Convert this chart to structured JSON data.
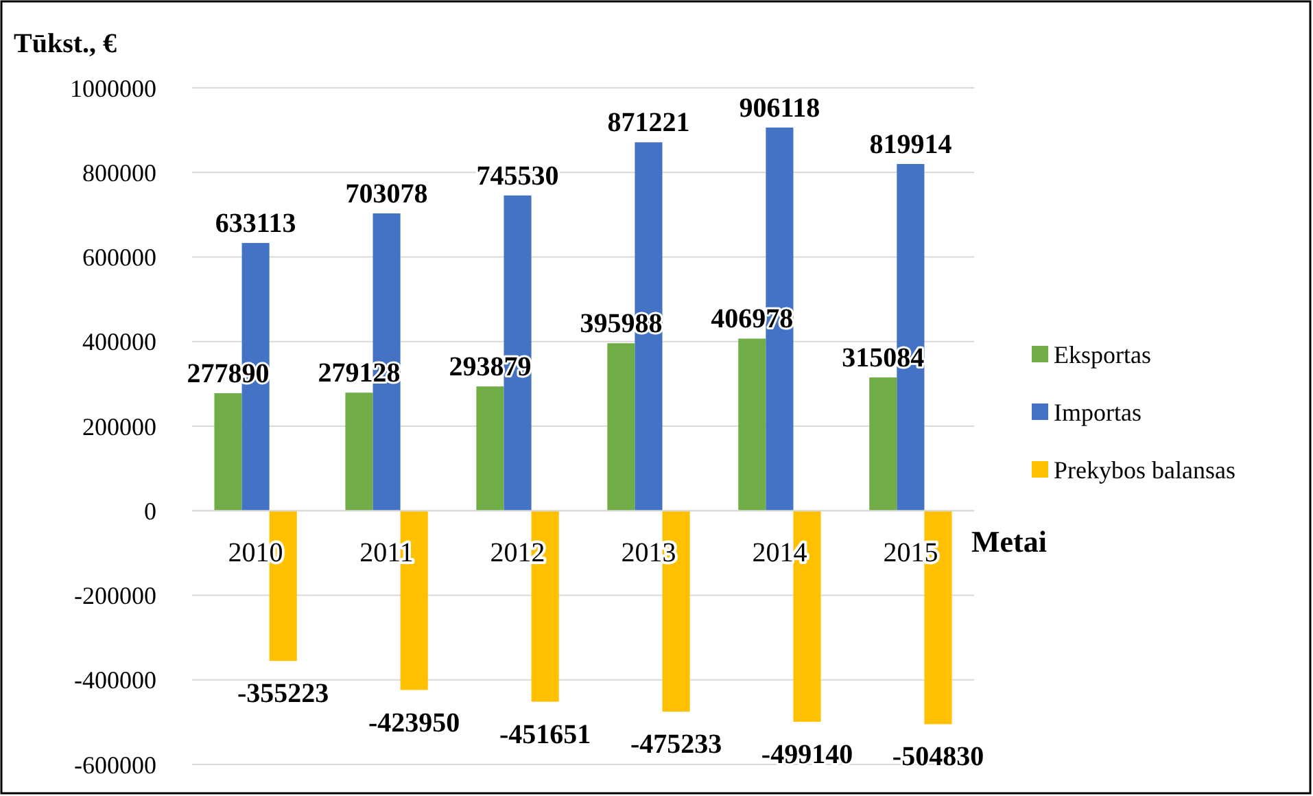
{
  "chart_data": {
    "type": "bar",
    "ylabel": "Tūkst., €",
    "xlabel": "Metai",
    "categories": [
      "2010",
      "2011",
      "2012",
      "2013",
      "2014",
      "2015"
    ],
    "series": [
      {
        "name": "Eksportas",
        "color": "#70ad47",
        "values": [
          277890,
          279128,
          293879,
          395988,
          406978,
          315084
        ]
      },
      {
        "name": "Importas",
        "color": "#4472c4",
        "values": [
          633113,
          703078,
          745530,
          871221,
          906118,
          819914
        ]
      },
      {
        "name": "Prekybos balansas",
        "color": "#ffc000",
        "values": [
          -355223,
          -423950,
          -451651,
          -475233,
          -499140,
          -504830
        ]
      }
    ],
    "ylim": [
      -600000,
      1000000
    ],
    "yticks": [
      -600000,
      -400000,
      -200000,
      0,
      200000,
      400000,
      600000,
      800000,
      1000000
    ],
    "grid": "y",
    "legend": "right",
    "data_labels": true
  }
}
